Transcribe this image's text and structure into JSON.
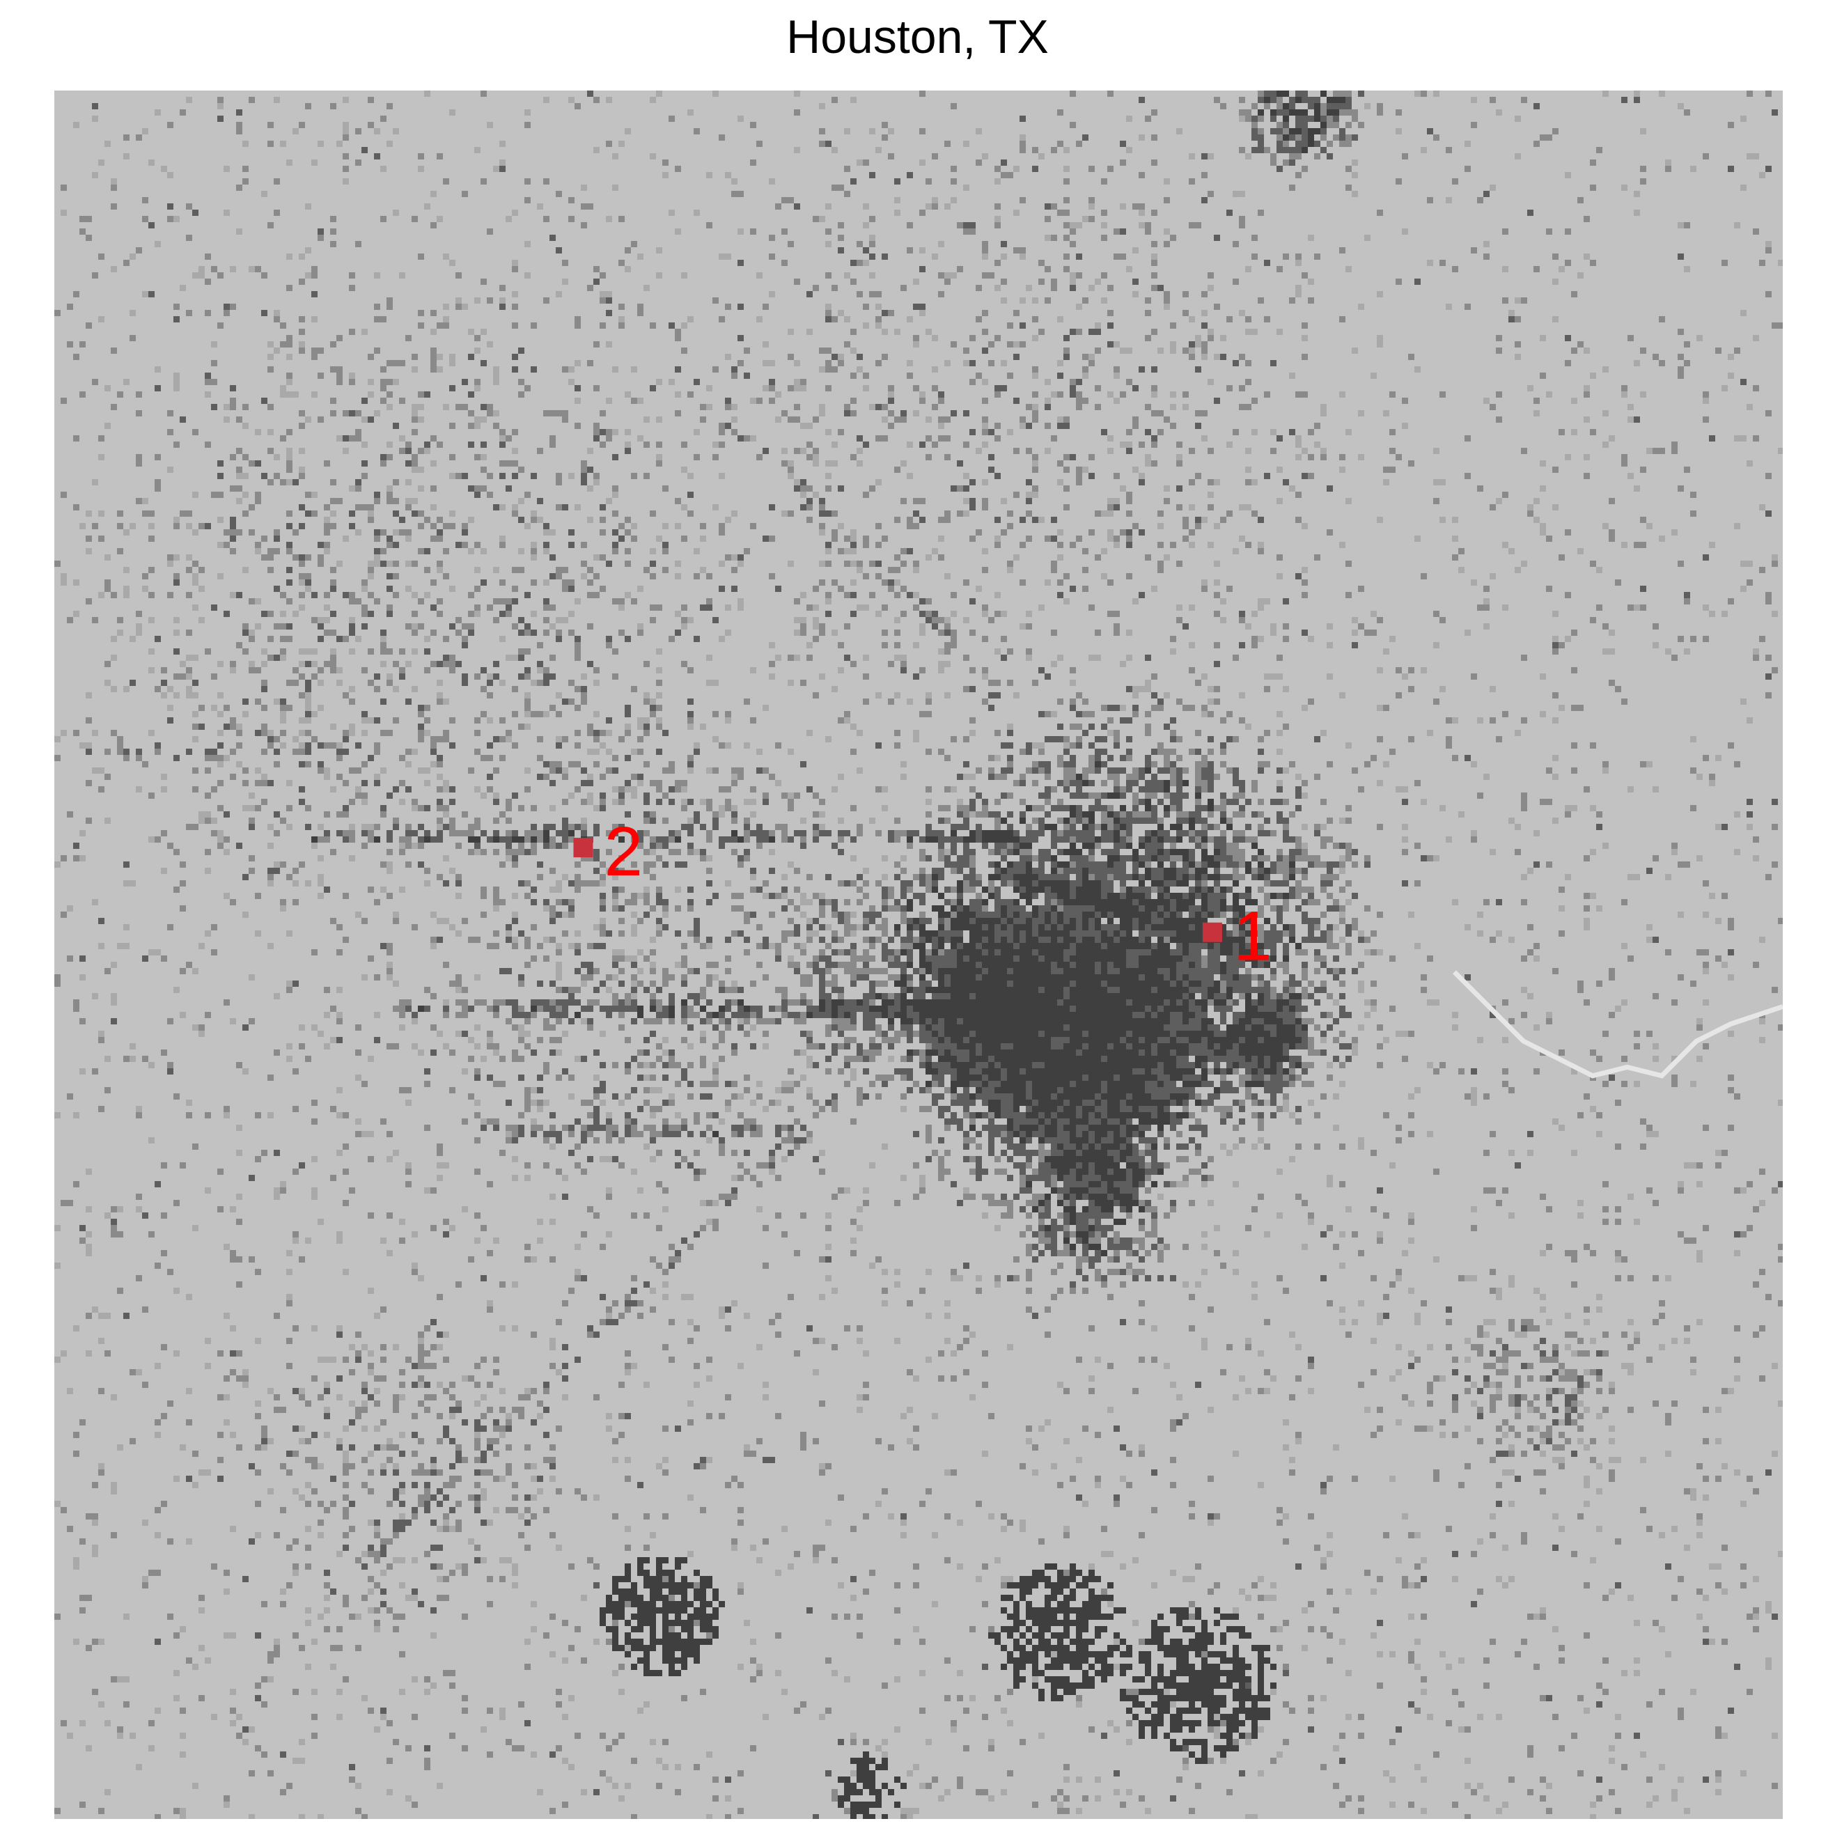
{
  "title": "Houston, TX",
  "colors": {
    "background": "#c2c2c2",
    "low_density": "#a9a9a9",
    "mid_density": "#8a8a8a",
    "high_density": "#5e5e5e",
    "very_high_density": "#3f3f3f",
    "water": "#e6e6e6",
    "marker": "#c8323c",
    "marker_label": "#ff0000"
  },
  "markers": [
    {
      "label": "1",
      "col": 0.67,
      "row": 0.487
    },
    {
      "label": "2",
      "col": 0.306,
      "row": 0.438
    }
  ]
}
